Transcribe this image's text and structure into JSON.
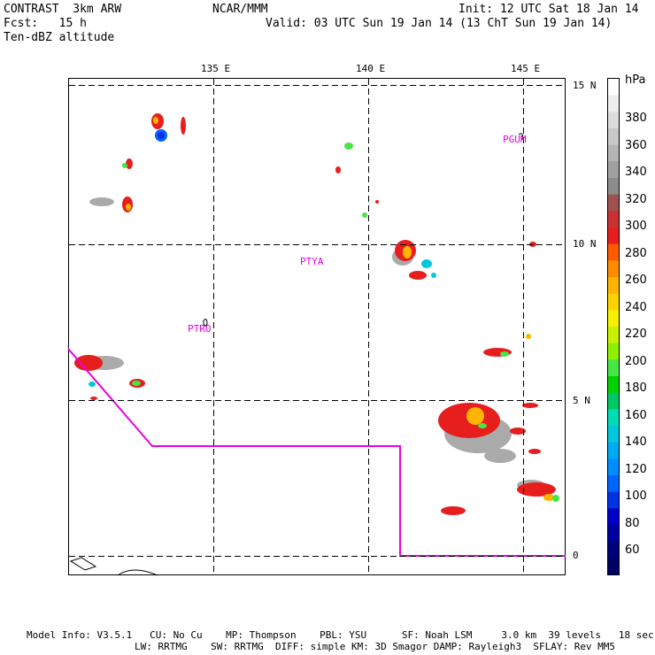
{
  "header": {
    "model": "CONTRAST  3km ARW",
    "forecast": "Fcst:   15 h",
    "field": "Ten-dBZ altitude",
    "org": "NCAR/MMM",
    "init": "Init: 12 UTC Sat 18 Jan 14",
    "valid": "Valid: 03 UTC Sun 19 Jan 14 (13 ChT Sun 19 Jan 14)"
  },
  "map": {
    "lon_labels": [
      "135 E",
      "140 E",
      "145 E"
    ],
    "lat_labels": [
      "15 N",
      "10 N",
      "5 N",
      "0"
    ],
    "stations": [
      "PGUM",
      "PTYA",
      "PTRO"
    ]
  },
  "colorbar": {
    "unit": "hPa",
    "labels": [
      "380",
      "360",
      "340",
      "320",
      "300",
      "280",
      "260",
      "240",
      "220",
      "200",
      "180",
      "160",
      "140",
      "120",
      "100",
      "80",
      "60"
    ],
    "colors": [
      "#ffffff",
      "#eeeeee",
      "#dcdcdc",
      "#c8c8c8",
      "#b4b4b4",
      "#a0a0a0",
      "#8c8c8c",
      "#a05050",
      "#c83232",
      "#e61e1e",
      "#ff5a00",
      "#ff8c00",
      "#ffb400",
      "#ffd200",
      "#f5f000",
      "#c8f000",
      "#8cf000",
      "#46e646",
      "#00d200",
      "#00c864",
      "#00dcb4",
      "#00c8dc",
      "#00aaf0",
      "#008cff",
      "#0064ff",
      "#0032e6",
      "#0000c8",
      "#0000a0",
      "#00007a",
      "#000060"
    ]
  },
  "footer": {
    "line1": "Model Info: V3.5.1   CU: No Cu    MP: Thompson    PBL: YSU      SF: Noah LSM     3.0 km  39 levels   18 sec",
    "line2": "LW: RRTMG    SW: RRTMG  DIFF: simple KM: 3D Smagor DAMP: Rayleigh3  SFLAY: Rev MM5"
  }
}
